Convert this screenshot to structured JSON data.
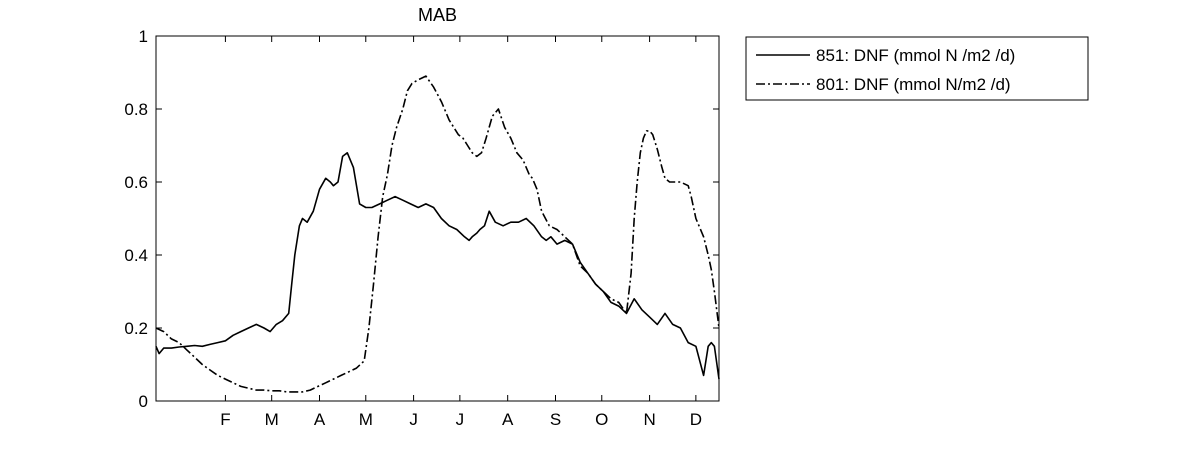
{
  "chart_data": {
    "type": "line",
    "title": "MAB",
    "xlabel": "",
    "ylabel": "",
    "xlim": [
      0,
      365
    ],
    "ylim": [
      0,
      1
    ],
    "x_ticks": [
      {
        "label": "F",
        "value": 45
      },
      {
        "label": "M",
        "value": 75
      },
      {
        "label": "A",
        "value": 106
      },
      {
        "label": "M",
        "value": 136
      },
      {
        "label": "J",
        "value": 167
      },
      {
        "label": "J",
        "value": 197
      },
      {
        "label": "A",
        "value": 228
      },
      {
        "label": "S",
        "value": 259
      },
      {
        "label": "O",
        "value": 289
      },
      {
        "label": "N",
        "value": 320
      },
      {
        "label": "D",
        "value": 350
      }
    ],
    "y_ticks": [
      {
        "label": "0",
        "value": 0
      },
      {
        "label": "0.2",
        "value": 0.2
      },
      {
        "label": "0.4",
        "value": 0.4
      },
      {
        "label": "0.6",
        "value": 0.6
      },
      {
        "label": "0.8",
        "value": 0.8
      },
      {
        "label": "1",
        "value": 1
      }
    ],
    "grid": false,
    "legend_position": "outside-top-right",
    "series": [
      {
        "name": "851: DNF (mmol N /m2 /d)",
        "line_style": "solid",
        "color": "#000000",
        "x": [
          0,
          2,
          5,
          10,
          15,
          20,
          25,
          30,
          35,
          40,
          45,
          50,
          55,
          60,
          65,
          70,
          74,
          78,
          82,
          86,
          88,
          90,
          93,
          95,
          98,
          102,
          106,
          110,
          113,
          115,
          118,
          121,
          124,
          128,
          132,
          136,
          140,
          145,
          150,
          155,
          160,
          165,
          170,
          175,
          180,
          185,
          190,
          195,
          200,
          203,
          205,
          208,
          210,
          213,
          216,
          220,
          225,
          230,
          235,
          240,
          245,
          250,
          253,
          256,
          260,
          265,
          270,
          275,
          280,
          285,
          290,
          295,
          300,
          305,
          310,
          315,
          320,
          325,
          330,
          335,
          340,
          345,
          350,
          355,
          358,
          360,
          362,
          365
        ],
        "values": [
          0.15,
          0.13,
          0.145,
          0.145,
          0.148,
          0.15,
          0.152,
          0.15,
          0.155,
          0.16,
          0.165,
          0.18,
          0.19,
          0.2,
          0.21,
          0.2,
          0.19,
          0.21,
          0.22,
          0.24,
          0.32,
          0.4,
          0.48,
          0.5,
          0.49,
          0.52,
          0.58,
          0.61,
          0.6,
          0.59,
          0.6,
          0.67,
          0.68,
          0.64,
          0.54,
          0.53,
          0.53,
          0.54,
          0.55,
          0.56,
          0.55,
          0.54,
          0.53,
          0.54,
          0.53,
          0.5,
          0.48,
          0.47,
          0.45,
          0.44,
          0.45,
          0.46,
          0.47,
          0.48,
          0.52,
          0.49,
          0.48,
          0.49,
          0.49,
          0.5,
          0.48,
          0.45,
          0.44,
          0.45,
          0.43,
          0.44,
          0.43,
          0.38,
          0.35,
          0.32,
          0.3,
          0.27,
          0.26,
          0.24,
          0.28,
          0.25,
          0.23,
          0.21,
          0.24,
          0.21,
          0.2,
          0.16,
          0.15,
          0.07,
          0.15,
          0.16,
          0.15,
          0.06
        ]
      },
      {
        "name": "801: DNF (mmol N/m2 /d)",
        "line_style": "dashdot",
        "color": "#000000",
        "x": [
          0,
          5,
          10,
          15,
          20,
          25,
          30,
          35,
          40,
          45,
          50,
          55,
          60,
          65,
          70,
          75,
          80,
          85,
          90,
          95,
          100,
          105,
          110,
          115,
          120,
          125,
          130,
          135,
          138,
          141,
          144,
          147,
          150,
          153,
          156,
          160,
          163,
          166,
          170,
          175,
          180,
          185,
          190,
          193,
          196,
          199,
          202,
          205,
          208,
          211,
          214,
          218,
          222,
          226,
          230,
          234,
          238,
          240,
          242,
          244,
          247,
          250,
          255,
          260,
          265,
          270,
          275,
          280,
          285,
          290,
          295,
          300,
          305,
          308,
          310,
          312,
          314,
          316,
          318,
          320,
          322,
          325,
          328,
          330,
          333,
          336,
          340,
          345,
          347,
          350,
          355,
          358,
          360,
          362,
          365
        ],
        "values": [
          0.2,
          0.19,
          0.17,
          0.16,
          0.14,
          0.12,
          0.1,
          0.085,
          0.07,
          0.06,
          0.05,
          0.04,
          0.035,
          0.03,
          0.03,
          0.028,
          0.028,
          0.025,
          0.025,
          0.025,
          0.03,
          0.04,
          0.05,
          0.06,
          0.07,
          0.08,
          0.09,
          0.11,
          0.2,
          0.32,
          0.45,
          0.56,
          0.62,
          0.7,
          0.75,
          0.8,
          0.85,
          0.87,
          0.88,
          0.89,
          0.86,
          0.82,
          0.77,
          0.75,
          0.73,
          0.72,
          0.7,
          0.68,
          0.67,
          0.68,
          0.72,
          0.78,
          0.8,
          0.75,
          0.72,
          0.68,
          0.66,
          0.64,
          0.62,
          0.61,
          0.58,
          0.52,
          0.48,
          0.47,
          0.45,
          0.43,
          0.37,
          0.35,
          0.32,
          0.3,
          0.28,
          0.27,
          0.24,
          0.35,
          0.5,
          0.6,
          0.68,
          0.72,
          0.74,
          0.74,
          0.73,
          0.69,
          0.64,
          0.61,
          0.6,
          0.6,
          0.6,
          0.59,
          0.56,
          0.5,
          0.45,
          0.4,
          0.36,
          0.3,
          0.2
        ]
      }
    ]
  }
}
